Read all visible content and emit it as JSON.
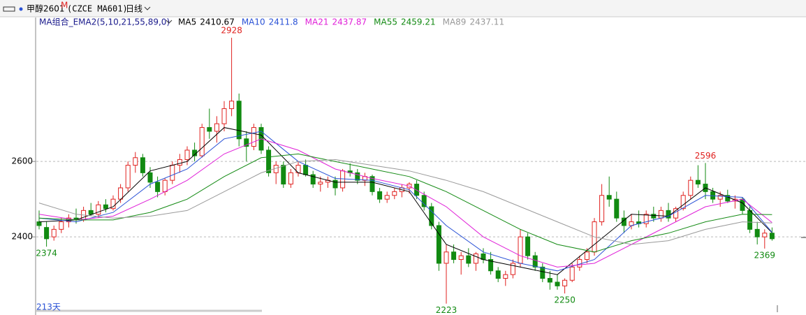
{
  "chart_data": {
    "type": "candlestick",
    "title": "甲醇2601",
    "title_sup": "M",
    "subtitle": "(CZCE MA601)",
    "period": "日线",
    "indicator": "MA组合_EMA2(5,10,21,55,89,0)",
    "day_count": "213天",
    "ylim": [
      2204,
      2954
    ],
    "yticks": [
      2400,
      2600
    ],
    "grid": true,
    "up_color": "#e0211f",
    "down_color": "#118a11",
    "candles": [
      [
        2440,
        2470,
        2420,
        2430
      ],
      [
        2425,
        2440,
        2374,
        2395
      ],
      [
        2400,
        2430,
        2390,
        2420
      ],
      [
        2420,
        2450,
        2410,
        2440
      ],
      [
        2440,
        2460,
        2425,
        2450
      ],
      [
        2450,
        2475,
        2435,
        2445
      ],
      [
        2445,
        2480,
        2440,
        2470
      ],
      [
        2470,
        2490,
        2455,
        2460
      ],
      [
        2460,
        2495,
        2450,
        2485
      ],
      [
        2485,
        2500,
        2465,
        2475
      ],
      [
        2475,
        2510,
        2470,
        2500
      ],
      [
        2500,
        2540,
        2490,
        2530
      ],
      [
        2530,
        2600,
        2520,
        2590
      ],
      [
        2590,
        2625,
        2570,
        2610
      ],
      [
        2610,
        2620,
        2560,
        2570
      ],
      [
        2570,
        2585,
        2530,
        2545
      ],
      [
        2545,
        2560,
        2505,
        2520
      ],
      [
        2520,
        2555,
        2510,
        2550
      ],
      [
        2550,
        2600,
        2540,
        2590
      ],
      [
        2590,
        2620,
        2570,
        2605
      ],
      [
        2605,
        2640,
        2590,
        2630
      ],
      [
        2630,
        2650,
        2600,
        2615
      ],
      [
        2615,
        2700,
        2610,
        2690
      ],
      [
        2690,
        2740,
        2660,
        2680
      ],
      [
        2680,
        2720,
        2650,
        2700
      ],
      [
        2700,
        2760,
        2680,
        2740
      ],
      [
        2740,
        2928,
        2720,
        2760
      ],
      [
        2760,
        2780,
        2640,
        2660
      ],
      [
        2660,
        2680,
        2600,
        2640
      ],
      [
        2640,
        2700,
        2630,
        2690
      ],
      [
        2690,
        2700,
        2620,
        2630
      ],
      [
        2630,
        2640,
        2560,
        2570
      ],
      [
        2570,
        2600,
        2540,
        2590
      ],
      [
        2590,
        2600,
        2530,
        2540
      ],
      [
        2540,
        2580,
        2530,
        2570
      ],
      [
        2570,
        2600,
        2560,
        2590
      ],
      [
        2590,
        2605,
        2560,
        2565
      ],
      [
        2565,
        2575,
        2530,
        2540
      ],
      [
        2540,
        2560,
        2520,
        2545
      ],
      [
        2545,
        2560,
        2530,
        2550
      ],
      [
        2550,
        2560,
        2510,
        2530
      ],
      [
        2530,
        2580,
        2520,
        2575
      ],
      [
        2575,
        2595,
        2560,
        2570
      ],
      [
        2570,
        2580,
        2540,
        2550
      ],
      [
        2550,
        2570,
        2535,
        2560
      ],
      [
        2560,
        2565,
        2510,
        2520
      ],
      [
        2520,
        2530,
        2490,
        2500
      ],
      [
        2500,
        2520,
        2490,
        2510
      ],
      [
        2510,
        2530,
        2500,
        2520
      ],
      [
        2520,
        2540,
        2505,
        2530
      ],
      [
        2530,
        2545,
        2515,
        2540
      ],
      [
        2540,
        2550,
        2500,
        2510
      ],
      [
        2510,
        2520,
        2470,
        2480
      ],
      [
        2480,
        2490,
        2420,
        2430
      ],
      [
        2430,
        2440,
        2310,
        2330
      ],
      [
        2330,
        2380,
        2223,
        2360
      ],
      [
        2360,
        2380,
        2330,
        2340
      ],
      [
        2340,
        2360,
        2300,
        2350
      ],
      [
        2350,
        2370,
        2320,
        2330
      ],
      [
        2330,
        2360,
        2310,
        2355
      ],
      [
        2355,
        2370,
        2330,
        2340
      ],
      [
        2340,
        2360,
        2300,
        2310
      ],
      [
        2310,
        2320,
        2280,
        2290
      ],
      [
        2290,
        2310,
        2270,
        2300
      ],
      [
        2300,
        2340,
        2290,
        2330
      ],
      [
        2330,
        2420,
        2320,
        2400
      ],
      [
        2400,
        2410,
        2340,
        2350
      ],
      [
        2350,
        2360,
        2310,
        2320
      ],
      [
        2320,
        2330,
        2280,
        2290
      ],
      [
        2290,
        2310,
        2260,
        2280
      ],
      [
        2280,
        2300,
        2260,
        2270
      ],
      [
        2270,
        2290,
        2250,
        2285
      ],
      [
        2285,
        2330,
        2280,
        2320
      ],
      [
        2320,
        2350,
        2310,
        2340
      ],
      [
        2340,
        2370,
        2330,
        2360
      ],
      [
        2360,
        2450,
        2350,
        2440
      ],
      [
        2440,
        2540,
        2430,
        2510
      ],
      [
        2510,
        2560,
        2480,
        2500
      ],
      [
        2500,
        2520,
        2440,
        2450
      ],
      [
        2450,
        2470,
        2410,
        2430
      ],
      [
        2430,
        2460,
        2420,
        2440
      ],
      [
        2440,
        2470,
        2425,
        2435
      ],
      [
        2435,
        2470,
        2425,
        2460
      ],
      [
        2460,
        2480,
        2440,
        2450
      ],
      [
        2450,
        2480,
        2440,
        2470
      ],
      [
        2470,
        2490,
        2440,
        2450
      ],
      [
        2450,
        2480,
        2440,
        2475
      ],
      [
        2475,
        2520,
        2470,
        2510
      ],
      [
        2510,
        2560,
        2500,
        2550
      ],
      [
        2550,
        2590,
        2530,
        2540
      ],
      [
        2540,
        2596,
        2500,
        2520
      ],
      [
        2520,
        2530,
        2490,
        2500
      ],
      [
        2500,
        2520,
        2480,
        2510
      ],
      [
        2510,
        2525,
        2490,
        2495
      ],
      [
        2495,
        2510,
        2475,
        2500
      ],
      [
        2500,
        2505,
        2460,
        2470
      ],
      [
        2470,
        2480,
        2410,
        2420
      ],
      [
        2420,
        2440,
        2380,
        2400
      ],
      [
        2400,
        2420,
        2369,
        2410
      ],
      [
        2410,
        2425,
        2390,
        2395
      ]
    ],
    "series": [
      {
        "name": "MA5",
        "last": 2410.67,
        "color": "#000000",
        "x": [
          0,
          5,
          10,
          15,
          20,
          25,
          30,
          35,
          40,
          45,
          50,
          55,
          60,
          65,
          70,
          75,
          80,
          85,
          90,
          95,
          99
        ],
        "values": [
          2440,
          2445,
          2480,
          2575,
          2600,
          2690,
          2670,
          2570,
          2545,
          2545,
          2520,
          2380,
          2340,
          2320,
          2300,
          2380,
          2460,
          2455,
          2530,
          2490,
          2411
        ]
      },
      {
        "name": "MA10",
        "last": 2411.8,
        "color": "#2a52d6",
        "x": [
          0,
          5,
          10,
          15,
          20,
          25,
          30,
          35,
          40,
          45,
          50,
          55,
          60,
          65,
          70,
          75,
          80,
          85,
          90,
          95,
          99
        ],
        "values": [
          2450,
          2440,
          2465,
          2540,
          2580,
          2660,
          2680,
          2600,
          2555,
          2550,
          2525,
          2430,
          2360,
          2330,
          2310,
          2340,
          2430,
          2455,
          2510,
          2505,
          2412
        ]
      },
      {
        "name": "MA21",
        "last": 2437.87,
        "color": "#e020d8",
        "x": [
          0,
          5,
          10,
          15,
          20,
          25,
          30,
          35,
          40,
          45,
          50,
          55,
          60,
          65,
          70,
          75,
          80,
          85,
          90,
          95,
          99
        ],
        "values": [
          2460,
          2445,
          2455,
          2500,
          2550,
          2620,
          2660,
          2630,
          2580,
          2555,
          2535,
          2480,
          2400,
          2350,
          2320,
          2330,
          2380,
          2430,
          2480,
          2500,
          2438
        ]
      },
      {
        "name": "MA55",
        "last": 2459.21,
        "color": "#138a13",
        "x": [
          0,
          5,
          10,
          15,
          20,
          25,
          30,
          35,
          40,
          45,
          50,
          55,
          60,
          65,
          70,
          75,
          80,
          85,
          90,
          95,
          99
        ],
        "values": [
          2450,
          2445,
          2445,
          2465,
          2500,
          2560,
          2610,
          2620,
          2600,
          2580,
          2560,
          2520,
          2470,
          2420,
          2380,
          2360,
          2390,
          2410,
          2440,
          2460,
          2459
        ]
      },
      {
        "name": "MA89",
        "last": 2437.11,
        "color": "#999999",
        "x": [
          0,
          5,
          10,
          15,
          20,
          25,
          30,
          35,
          40,
          45,
          50,
          55,
          60,
          65,
          70,
          75,
          80,
          85,
          90,
          95,
          99
        ],
        "values": [
          2490,
          2460,
          2450,
          2455,
          2470,
          2520,
          2570,
          2600,
          2605,
          2590,
          2575,
          2550,
          2520,
          2480,
          2440,
          2400,
          2380,
          2390,
          2420,
          2440,
          2437
        ]
      }
    ]
  }
}
